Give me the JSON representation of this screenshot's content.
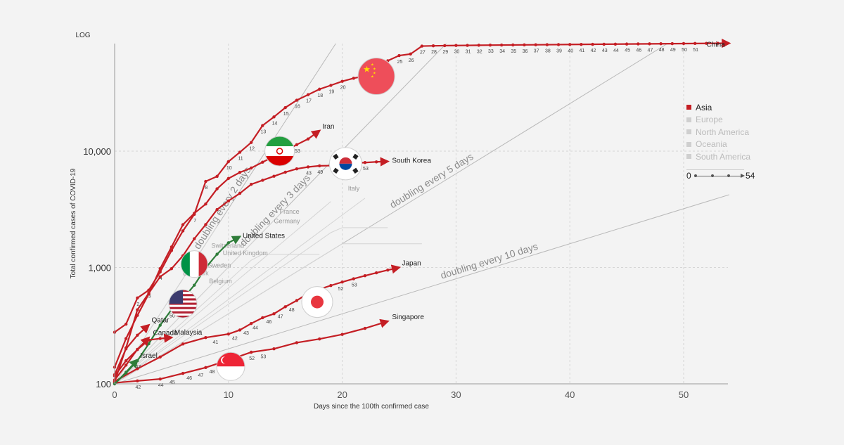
{
  "chart_data": {
    "type": "line",
    "scale_label": "LOG",
    "ylabel": "Total confirmed cases of COVID-19",
    "xlabel": "Days since the 100th confirmed case",
    "xlim": [
      0,
      54
    ],
    "ylim": [
      100,
      90000
    ],
    "yscale": "log",
    "xticks": [
      0,
      10,
      20,
      30,
      40,
      50
    ],
    "yticks": [
      {
        "value": 100,
        "label": "100"
      },
      {
        "value": 1000,
        "label": "1,000"
      },
      {
        "value": 10000,
        "label": "10,000"
      }
    ],
    "grid": true,
    "doubling_lines": [
      {
        "label": "doubling every 2 days",
        "days": 2
      },
      {
        "label": "doubling every 3 days",
        "days": 3
      },
      {
        "label": "doubling every 5 days",
        "days": 5
      },
      {
        "label": "doubling every 10 days",
        "days": 10
      }
    ],
    "series": [
      {
        "name": "China",
        "color": "#c41e24",
        "flag": "china-flag-icon",
        "points": [
          [
            0,
            278
          ],
          [
            1,
            326
          ],
          [
            2,
            547
          ],
          [
            3,
            639
          ],
          [
            4,
            916
          ],
          [
            5,
            1399
          ],
          [
            6,
            2062
          ],
          [
            7,
            2863
          ],
          [
            8,
            5494
          ],
          [
            9,
            6070
          ],
          [
            10,
            8124
          ],
          [
            11,
            9783
          ],
          [
            12,
            11871
          ],
          [
            13,
            16607
          ],
          [
            14,
            19693
          ],
          [
            15,
            23680
          ],
          [
            16,
            27409
          ],
          [
            17,
            30553
          ],
          [
            18,
            34075
          ],
          [
            19,
            36778
          ],
          [
            20,
            39790
          ],
          [
            21,
            42306
          ],
          [
            22,
            44327
          ],
          [
            23,
            44699
          ],
          [
            24,
            59832
          ],
          [
            25,
            66292
          ],
          [
            26,
            68347
          ],
          [
            27,
            80000
          ],
          [
            28,
            80400
          ],
          [
            29,
            80700
          ],
          [
            30,
            80900
          ],
          [
            31,
            81100
          ],
          [
            32,
            81300
          ],
          [
            33,
            81500
          ],
          [
            34,
            81650
          ],
          [
            35,
            81800
          ],
          [
            36,
            81950
          ],
          [
            37,
            82100
          ],
          [
            38,
            82250
          ],
          [
            39,
            82400
          ],
          [
            40,
            82550
          ],
          [
            41,
            82700
          ],
          [
            42,
            82850
          ],
          [
            43,
            83000
          ],
          [
            44,
            83150
          ],
          [
            45,
            83300
          ],
          [
            46,
            83450
          ],
          [
            47,
            83600
          ],
          [
            48,
            83750
          ],
          [
            49,
            83900
          ],
          [
            50,
            84050
          ],
          [
            51,
            84200
          ],
          [
            52,
            84350
          ],
          [
            53,
            84500
          ],
          [
            54,
            84650
          ]
        ],
        "point_labels": [
          [
            "2",
            2
          ],
          [
            "3",
            3
          ],
          [
            "4",
            4
          ],
          [
            "7",
            7
          ],
          [
            "8",
            8
          ],
          [
            "10",
            10
          ],
          [
            "11",
            11
          ],
          [
            "12",
            12
          ],
          [
            "13",
            13
          ],
          [
            "14",
            14
          ],
          [
            "15",
            15
          ],
          [
            "16",
            16
          ],
          [
            "17",
            17
          ],
          [
            "18",
            18
          ],
          [
            "19",
            19
          ],
          [
            "20",
            20
          ],
          [
            "24",
            24
          ],
          [
            "25",
            25
          ],
          [
            "26",
            26
          ],
          [
            "27",
            27
          ],
          [
            "28",
            28
          ],
          [
            "29",
            29
          ],
          [
            "30",
            30
          ],
          [
            "31",
            31
          ],
          [
            "32",
            32
          ],
          [
            "33",
            33
          ],
          [
            "34",
            34
          ],
          [
            "35",
            35
          ],
          [
            "36",
            36
          ],
          [
            "37",
            37
          ],
          [
            "38",
            38
          ],
          [
            "39",
            39
          ],
          [
            "40",
            40
          ],
          [
            "41",
            41
          ],
          [
            "42",
            42
          ],
          [
            "43",
            43
          ],
          [
            "44",
            44
          ],
          [
            "45",
            45
          ],
          [
            "46",
            46
          ],
          [
            "47",
            47
          ],
          [
            "48",
            48
          ],
          [
            "49",
            49
          ],
          [
            "50",
            50
          ],
          [
            "51",
            51
          ]
        ]
      },
      {
        "name": "Iran",
        "color": "#c41e24",
        "flag": "iran-flag-icon",
        "points": [
          [
            0,
            139
          ],
          [
            1,
            245
          ],
          [
            2,
            388
          ],
          [
            3,
            593
          ],
          [
            4,
            978
          ],
          [
            5,
            1501
          ],
          [
            6,
            2336
          ],
          [
            7,
            2922
          ],
          [
            8,
            3513
          ],
          [
            9,
            4747
          ],
          [
            10,
            5823
          ],
          [
            11,
            6566
          ],
          [
            12,
            7161
          ],
          [
            13,
            8042
          ],
          [
            14,
            9000
          ],
          [
            15,
            10075
          ],
          [
            16,
            11364
          ],
          [
            17,
            12729
          ],
          [
            18,
            14991
          ]
        ],
        "point_labels": [
          [
            "53",
            16
          ]
        ]
      },
      {
        "name": "South Korea",
        "color": "#c41e24",
        "flag": "south-korea-flag-icon",
        "points": [
          [
            0,
            104
          ],
          [
            1,
            204
          ],
          [
            2,
            433
          ],
          [
            3,
            602
          ],
          [
            4,
            833
          ],
          [
            5,
            977
          ],
          [
            6,
            1261
          ],
          [
            7,
            1766
          ],
          [
            8,
            2337
          ],
          [
            9,
            3150
          ],
          [
            10,
            3736
          ],
          [
            11,
            4335
          ],
          [
            12,
            5186
          ],
          [
            13,
            5621
          ],
          [
            14,
            6088
          ],
          [
            15,
            6593
          ],
          [
            16,
            7041
          ],
          [
            17,
            7314
          ],
          [
            18,
            7478
          ],
          [
            19,
            7513
          ],
          [
            20,
            7755
          ],
          [
            21,
            7869
          ],
          [
            22,
            7979
          ],
          [
            23,
            8086
          ],
          [
            24,
            8162
          ]
        ],
        "point_labels": [
          [
            "43",
            17
          ],
          [
            "49",
            18
          ],
          [
            "52",
            21
          ],
          [
            "53",
            22
          ]
        ]
      },
      {
        "name": "Japan",
        "color": "#c41e24",
        "flag": "japan-flag-icon",
        "points": [
          [
            0,
            105
          ],
          [
            2,
            135
          ],
          [
            4,
            170
          ],
          [
            6,
            220
          ],
          [
            8,
            250
          ],
          [
            10,
            268
          ],
          [
            11,
            290
          ],
          [
            12,
            330
          ],
          [
            13,
            370
          ],
          [
            14,
            400
          ],
          [
            15,
            460
          ],
          [
            16,
            520
          ],
          [
            17,
            600
          ],
          [
            18,
            650
          ],
          [
            19,
            700
          ],
          [
            20,
            750
          ],
          [
            21,
            800
          ],
          [
            22,
            850
          ],
          [
            23,
            900
          ],
          [
            24,
            950
          ],
          [
            25,
            1000
          ]
        ],
        "point_labels": [
          [
            "41",
            8.8
          ],
          [
            "42",
            10.5
          ],
          [
            "43",
            11.5
          ],
          [
            "44",
            12.3
          ],
          [
            "46",
            13.5
          ],
          [
            "47",
            14.5
          ],
          [
            "48",
            15.5
          ],
          [
            "51",
            18.2
          ],
          [
            "52",
            19.8
          ],
          [
            "53",
            21
          ]
        ]
      },
      {
        "name": "Singapore",
        "color": "#c41e24",
        "flag": "singapore-flag-icon",
        "points": [
          [
            0,
            102
          ],
          [
            2,
            106
          ],
          [
            4,
            110
          ],
          [
            6,
            123
          ],
          [
            8,
            138
          ],
          [
            10,
            160
          ],
          [
            12,
            187
          ],
          [
            14,
            200
          ],
          [
            16,
            226
          ],
          [
            18,
            243
          ],
          [
            20,
            266
          ],
          [
            22,
            300
          ],
          [
            24,
            345
          ]
        ],
        "point_labels": [
          [
            "42",
            2
          ],
          [
            "44",
            4
          ],
          [
            "45",
            5
          ],
          [
            "46",
            6.5
          ],
          [
            "47",
            7.5
          ],
          [
            "48",
            8.5
          ],
          [
            "52",
            12
          ],
          [
            "53",
            13
          ]
        ]
      },
      {
        "name": "United States",
        "color": "#2f7d3a",
        "flag": "usa-flag-icon",
        "points": [
          [
            0,
            100
          ],
          [
            1,
            124
          ],
          [
            2,
            158
          ],
          [
            3,
            221
          ],
          [
            4,
            319
          ],
          [
            5,
            435
          ],
          [
            6,
            541
          ],
          [
            7,
            704
          ],
          [
            8,
            994
          ],
          [
            9,
            1301
          ],
          [
            10,
            1630
          ],
          [
            11,
            1840
          ]
        ],
        "point_labels": [
          [
            "47",
            2
          ],
          [
            "50",
            5
          ]
        ]
      },
      {
        "name": "Italy",
        "color": "#2f7d3a",
        "flag": "italy-flag-icon",
        "points": [],
        "point_labels": []
      },
      {
        "name": "Qatar",
        "color": "#c41e24",
        "points": [
          [
            0,
            120
          ],
          [
            1,
            200
          ],
          [
            2,
            262
          ],
          [
            3,
            320
          ]
        ],
        "point_labels": []
      },
      {
        "name": "Canada",
        "color": "#c41e24",
        "points": [
          [
            0,
            108
          ],
          [
            1,
            145
          ],
          [
            2,
            198
          ],
          [
            3,
            249
          ]
        ],
        "point_labels": []
      },
      {
        "name": "Malaysia",
        "color": "#c41e24",
        "points": [
          [
            0,
            117
          ],
          [
            1,
            158
          ],
          [
            2,
            197
          ],
          [
            3,
            238
          ],
          [
            4,
            245
          ],
          [
            5,
            250
          ]
        ],
        "point_labels": []
      },
      {
        "name": "Israel",
        "color": "#2f7d3a",
        "points": [
          [
            0,
            100
          ],
          [
            1,
            126
          ],
          [
            2,
            161
          ]
        ],
        "point_labels": []
      }
    ],
    "background_labels": [
      "Italy",
      "France",
      "Germany",
      "Switzerland",
      "United Kingdom",
      "Sweden",
      "Denmark",
      "Belgium"
    ],
    "legend": {
      "position": "right",
      "items": [
        {
          "label": "Asia",
          "active": true
        },
        {
          "label": "Europe",
          "active": false
        },
        {
          "label": "North America",
          "active": false
        },
        {
          "label": "Oceania",
          "active": false
        },
        {
          "label": "South America",
          "active": false
        }
      ]
    },
    "slider": {
      "min": "0",
      "max": "54"
    }
  }
}
